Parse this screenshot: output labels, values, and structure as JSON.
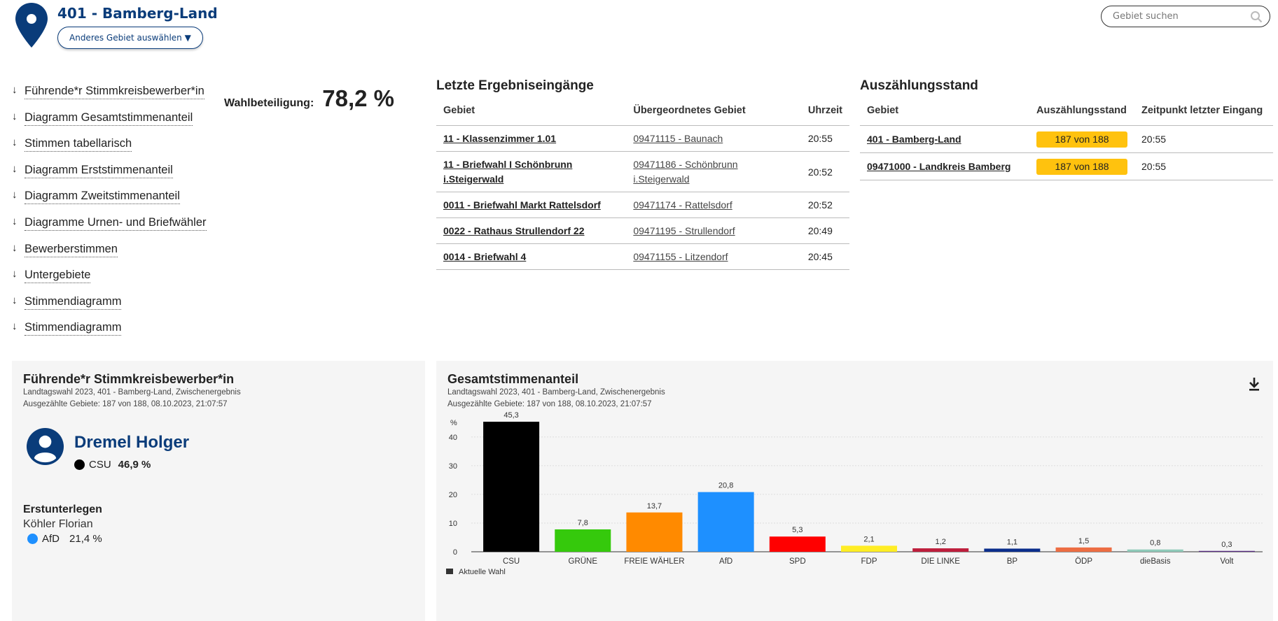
{
  "header": {
    "area_title": "401 - Bamberg-Land",
    "change_area_button": "Anderes Gebiet auswählen ▼",
    "search_placeholder": "Gebiet suchen"
  },
  "jump_links": [
    "Führende*r Stimmkreisbewerber*in",
    "Diagramm Gesamtstimmenanteil",
    "Stimmen tabellarisch",
    "Diagramm Erststimmenanteil",
    "Diagramm Zweitstimmenanteil",
    "Diagramme Urnen- und Briefwähler",
    "Bewerberstimmen",
    "Untergebiete",
    "Stimmendiagramm",
    "Stimmendiagramm"
  ],
  "turnout": {
    "label": "Wahlbeteiligung:",
    "value": "78,2 %"
  },
  "recent_results": {
    "title": "Letzte Ergebniseingänge",
    "headers": [
      "Gebiet",
      "Übergeordnetes Gebiet",
      "Uhrzeit"
    ],
    "rows": [
      [
        "11 - Klassenzimmer 1.01",
        "09471115 - Baunach",
        "20:55"
      ],
      [
        "11 - Briefwahl I Schönbrunn i.Steigerwald",
        "09471186 - Schönbrunn i.Steigerwald",
        "20:52"
      ],
      [
        "0011 - Briefwahl Markt Rattelsdorf",
        "09471174 - Rattelsdorf",
        "20:52"
      ],
      [
        "0022 - Rathaus Strullendorf 22",
        "09471195 - Strullendorf",
        "20:49"
      ],
      [
        "0014 - Briefwahl 4",
        "09471155 - Litzendorf",
        "20:45"
      ]
    ]
  },
  "count_status": {
    "title": "Auszählungsstand",
    "headers": [
      "Gebiet",
      "Auszählungsstand",
      "Zeitpunkt letzter Eingang"
    ],
    "rows": [
      [
        "401 - Bamberg-Land",
        "187 von 188",
        "20:55"
      ],
      [
        "09471000 - Landkreis Bamberg",
        "187 von 188",
        "20:55"
      ]
    ]
  },
  "candidate_panel": {
    "title": "Führende*r Stimmkreisbewerber*in",
    "subtitle1": "Landtagswahl 2023, 401 - Bamberg-Land, Zwischenergebnis",
    "subtitle2": "Ausgezählte Gebiete: 187 von 188, 08.10.2023, 21:07:57",
    "leader_name": "Dremel Holger",
    "leader_party": "CSU",
    "leader_percent": "46,9 %",
    "leader_color": "#000000",
    "runner_label": "Erstunterlegen",
    "runner_name": "Köhler Florian",
    "runner_party": "AfD",
    "runner_percent": "21,4 %",
    "runner_color": "#1e90ff"
  },
  "chart_panel": {
    "title": "Gesamtstimmenanteil",
    "subtitle1": "Landtagswahl 2023, 401 - Bamberg-Land, Zwischenergebnis",
    "subtitle2": "Ausgezählte Gebiete: 187 von 188, 08.10.2023, 21:07:57"
  },
  "chart_data": {
    "type": "bar",
    "title": "Gesamtstimmenanteil",
    "ylabel": "%",
    "xlabel": "",
    "ylim": [
      0,
      48
    ],
    "yticks": [
      0,
      10,
      20,
      30,
      40
    ],
    "grid": true,
    "legend": "bottom-left",
    "series": [
      {
        "name": "Aktuelle Wahl",
        "categories": [
          "CSU",
          "GRÜNE",
          "FREIE WÄHLER",
          "AfD",
          "SPD",
          "FDP",
          "DIE LINKE",
          "BP",
          "ÖDP",
          "dieBasis",
          "Volt"
        ],
        "values": [
          45.3,
          7.8,
          13.7,
          20.8,
          5.3,
          2.1,
          1.2,
          1.1,
          1.5,
          0.8,
          0.3
        ],
        "labels": [
          "45,3",
          "7,8",
          "13,7",
          "20,8",
          "5,3",
          "2,1",
          "1,2",
          "1,1",
          "1,5",
          "0,8",
          "0,3"
        ],
        "colors": [
          "#000000",
          "#35c90c",
          "#ff8a00",
          "#1e90ff",
          "#ff0000",
          "#ffed25",
          "#be1e3c",
          "#0b2e8c",
          "#ec6d43",
          "#8fcab9",
          "#582c83"
        ]
      }
    ]
  }
}
